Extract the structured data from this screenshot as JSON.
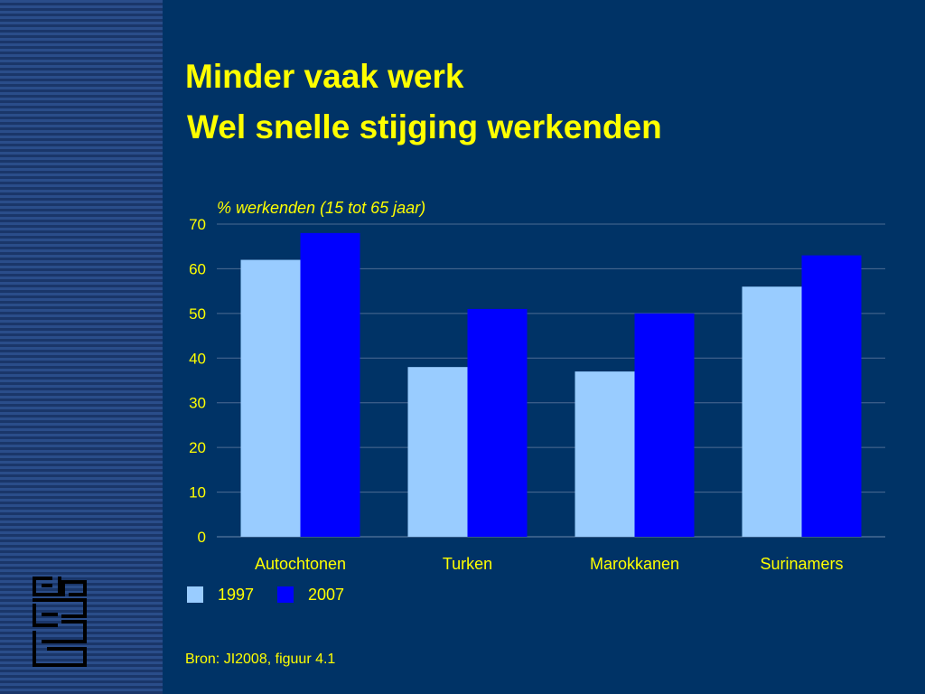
{
  "slide": {
    "title_line1": "Minder vaak werk",
    "title_line2": "Wel snelle stijging werkenden",
    "source": "Bron: JI2008, figuur 4.1"
  },
  "colors": {
    "background": "#003366",
    "text": "#ffff00",
    "series_1997": "#99ccff",
    "series_2007": "#0000ff"
  },
  "chart_data": {
    "type": "bar",
    "title": "",
    "ylabel": "% werkenden (15 tot 65 jaar)",
    "xlabel": "",
    "categories": [
      "Autochtonen",
      "Turken",
      "Marokkanen",
      "Surinamers"
    ],
    "series": [
      {
        "name": "1997",
        "color": "#99ccff",
        "values": [
          62,
          38,
          37,
          56
        ]
      },
      {
        "name": "2007",
        "color": "#0000ff",
        "values": [
          68,
          51,
          50,
          63
        ]
      }
    ],
    "ylim": [
      0,
      70
    ],
    "yticks": [
      0,
      10,
      20,
      30,
      40,
      50,
      60,
      70
    ],
    "grid": true,
    "legend": "bottom-left"
  }
}
